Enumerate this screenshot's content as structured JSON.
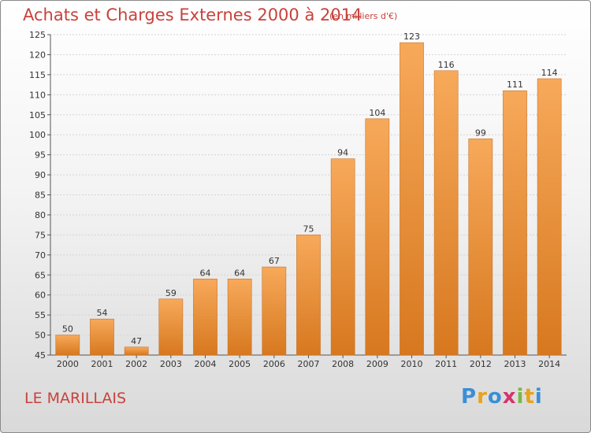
{
  "header": {
    "title": "Achats et Charges Externes 2000 à 2014",
    "subtitle": "(en milliers d'€)"
  },
  "footer": {
    "commune": "LE MARILLAIS",
    "logo_letters": [
      "P",
      "r",
      "o",
      "x",
      "i",
      "t",
      "i"
    ],
    "logo_colors": [
      "#3a8fd6",
      "#e8a21c",
      "#3a8fd6",
      "#d6336c",
      "#7ab648",
      "#e8a21c",
      "#3a8fd6"
    ]
  },
  "colors": {
    "bar_light": "#f7a95a",
    "bar_dark": "#d7781f",
    "text_accent": "#c8423c"
  },
  "chart_data": {
    "type": "bar",
    "categories": [
      "2000",
      "2001",
      "2002",
      "2003",
      "2004",
      "2005",
      "2006",
      "2007",
      "2008",
      "2009",
      "2010",
      "2011",
      "2012",
      "2013",
      "2014"
    ],
    "values": [
      50,
      54,
      47,
      59,
      64,
      64,
      67,
      75,
      94,
      104,
      123,
      116,
      99,
      111,
      114
    ],
    "data_labels": [
      "50",
      "54",
      "47",
      "59",
      "64",
      "64",
      "67",
      "75",
      "94",
      "104",
      "123",
      "116",
      "99",
      "111",
      "114"
    ],
    "y_ticks": [
      "45",
      "50",
      "55",
      "60",
      "65",
      "70",
      "75",
      "80",
      "85",
      "90",
      "95",
      "100",
      "105",
      "110",
      "115",
      "120",
      "125"
    ],
    "ylim": [
      45,
      125
    ],
    "grid": true,
    "title": "Achats et Charges Externes 2000 à 2014",
    "xlabel": "",
    "ylabel": ""
  }
}
